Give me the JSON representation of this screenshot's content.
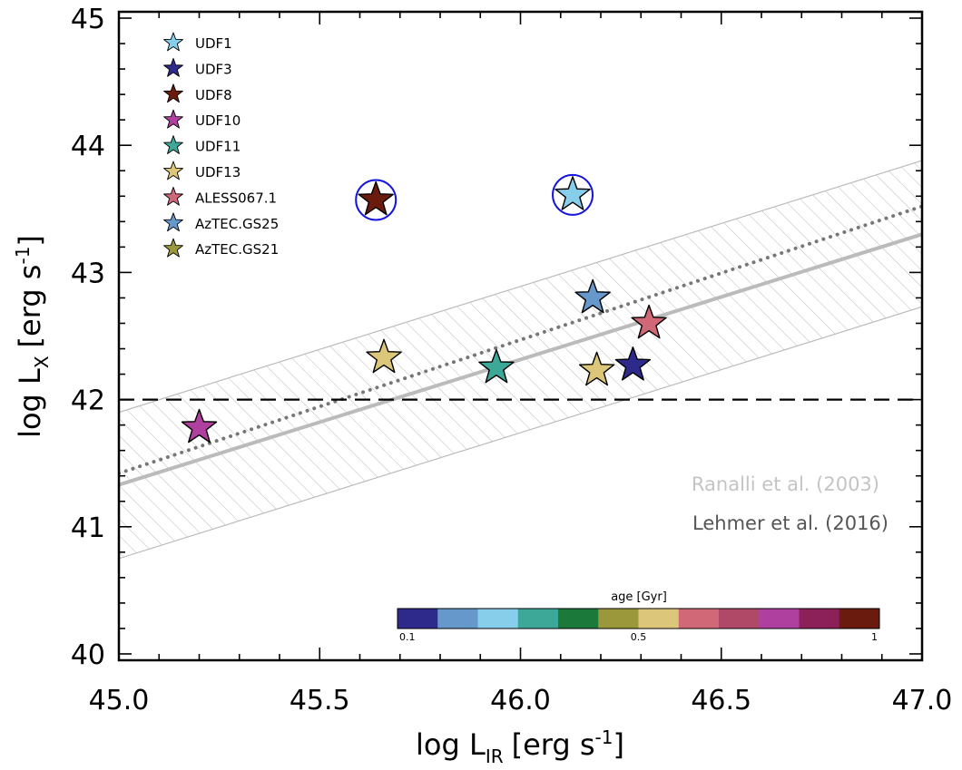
{
  "chart_data": {
    "type": "scatter",
    "xlabel": "log L",
    "xlabel_sub": "IR",
    "xlabel_unit": "[erg s",
    "xlabel_sup": "-1",
    "xlabel_close": "]",
    "ylabel": "log L",
    "ylabel_sub": "X",
    "ylabel_unit": "[erg s",
    "ylabel_sup": "-1",
    "ylabel_close": "]",
    "xlim": [
      45.0,
      47.0
    ],
    "ylim": [
      39.95,
      45.05
    ],
    "x_ticks": [
      45.0,
      45.5,
      46.0,
      46.5,
      47.0
    ],
    "x_tick_labels": [
      "45.0",
      "45.5",
      "46.0",
      "46.5",
      "47.0"
    ],
    "y_ticks": [
      40,
      41,
      42,
      43,
      44,
      45
    ],
    "y_tick_labels": [
      "40",
      "41",
      "42",
      "43",
      "44",
      "45"
    ],
    "points": [
      {
        "name": "UDF1",
        "x": 46.13,
        "y": 43.61,
        "color": "#87CEEB",
        "circled": true
      },
      {
        "name": "UDF3",
        "x": 46.28,
        "y": 42.27,
        "color": "#2E2A8C",
        "circled": false
      },
      {
        "name": "UDF8",
        "x": 45.64,
        "y": 43.57,
        "color": "#6B1A0E",
        "circled": true
      },
      {
        "name": "UDF10",
        "x": 45.2,
        "y": 41.78,
        "color": "#B040A0",
        "circled": false
      },
      {
        "name": "UDF11",
        "x": 45.94,
        "y": 42.25,
        "color": "#3DA898",
        "circled": false
      },
      {
        "name": "UDF13",
        "x": 46.19,
        "y": 42.23,
        "color": "#DCC67A",
        "circled": false
      },
      {
        "name": "UDF13",
        "x": 45.66,
        "y": 42.33,
        "color": "#DCC67A",
        "circled": false
      },
      {
        "name": "ALESS067.1",
        "x": 46.32,
        "y": 42.6,
        "color": "#D06878",
        "circled": false
      },
      {
        "name": "AzTEC.GS25",
        "x": 46.18,
        "y": 42.8,
        "color": "#6698CC",
        "circled": false
      }
    ],
    "legend": [
      {
        "label": "UDF1",
        "color": "#87CEEB"
      },
      {
        "label": "UDF3",
        "color": "#2E2A8C"
      },
      {
        "label": "UDF8",
        "color": "#6B1A0E"
      },
      {
        "label": "UDF10",
        "color": "#B040A0"
      },
      {
        "label": "UDF11",
        "color": "#3DA898"
      },
      {
        "label": "UDF13",
        "color": "#DCC67A"
      },
      {
        "label": "ALESS067.1",
        "color": "#D06878"
      },
      {
        "label": "AzTEC.GS25",
        "color": "#6698CC"
      },
      {
        "label": "AzTEC.GS21",
        "color": "#9A983A"
      }
    ],
    "relations": {
      "ranalli": {
        "label": "Ranalli et al. (2003)",
        "x": [
          45.0,
          47.0
        ],
        "y": [
          41.33,
          43.3
        ],
        "color": "#BBBBBB",
        "band_lower": [
          40.75,
          42.73
        ],
        "band_upper": [
          41.9,
          43.88
        ]
      },
      "lehmer": {
        "label": "Lehmer et al. (2016)",
        "x": [
          45.0,
          47.0
        ],
        "y": [
          41.42,
          43.52
        ],
        "color": "#777777"
      },
      "threshold": {
        "y": 42.0
      }
    },
    "colorbar": {
      "title": "age [Gyr]",
      "colors": [
        "#2E2A8C",
        "#6698CC",
        "#87CEEB",
        "#3DA898",
        "#1B7A3A",
        "#9A983A",
        "#DCC67A",
        "#D06878",
        "#B04868",
        "#B040A0",
        "#8C2058",
        "#6B1A0E"
      ],
      "tick_labels": [
        "0.1",
        "0.5",
        "1"
      ]
    }
  }
}
